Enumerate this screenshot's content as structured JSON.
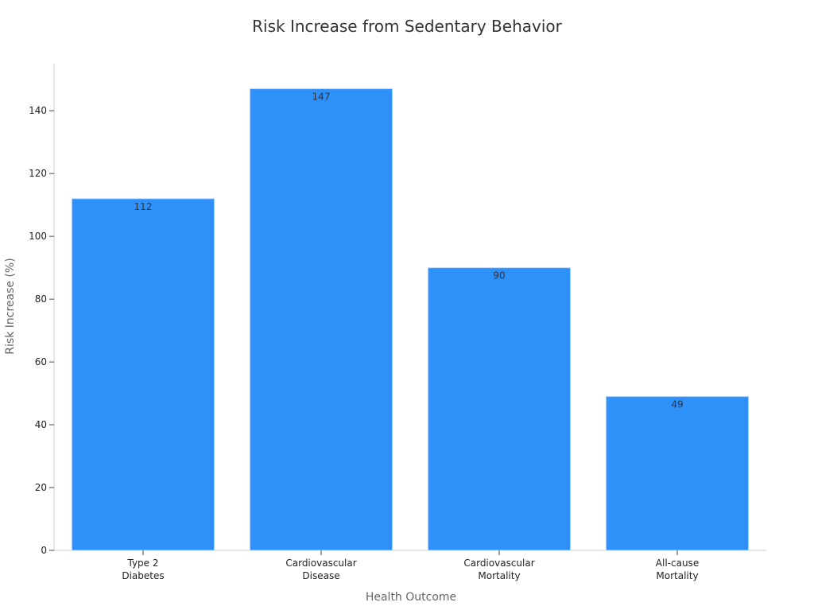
{
  "chart_data": {
    "type": "bar",
    "title": "Risk Increase from Sedentary Behavior",
    "xlabel": "Health Outcome",
    "ylabel": "Risk Increase (%)",
    "categories": [
      [
        "Type 2",
        "Diabetes"
      ],
      [
        "Cardiovascular",
        "Disease"
      ],
      [
        "Cardiovascular",
        "Mortality"
      ],
      [
        "All-cause",
        "Mortality"
      ]
    ],
    "values": [
      112,
      147,
      90,
      49
    ],
    "ylim": [
      0,
      155
    ],
    "yticks": [
      0,
      20,
      40,
      60,
      80,
      100,
      120,
      140
    ],
    "grid": false,
    "bar_color": "#2E90F9",
    "bar_edge_color": "#B8D8FC"
  }
}
